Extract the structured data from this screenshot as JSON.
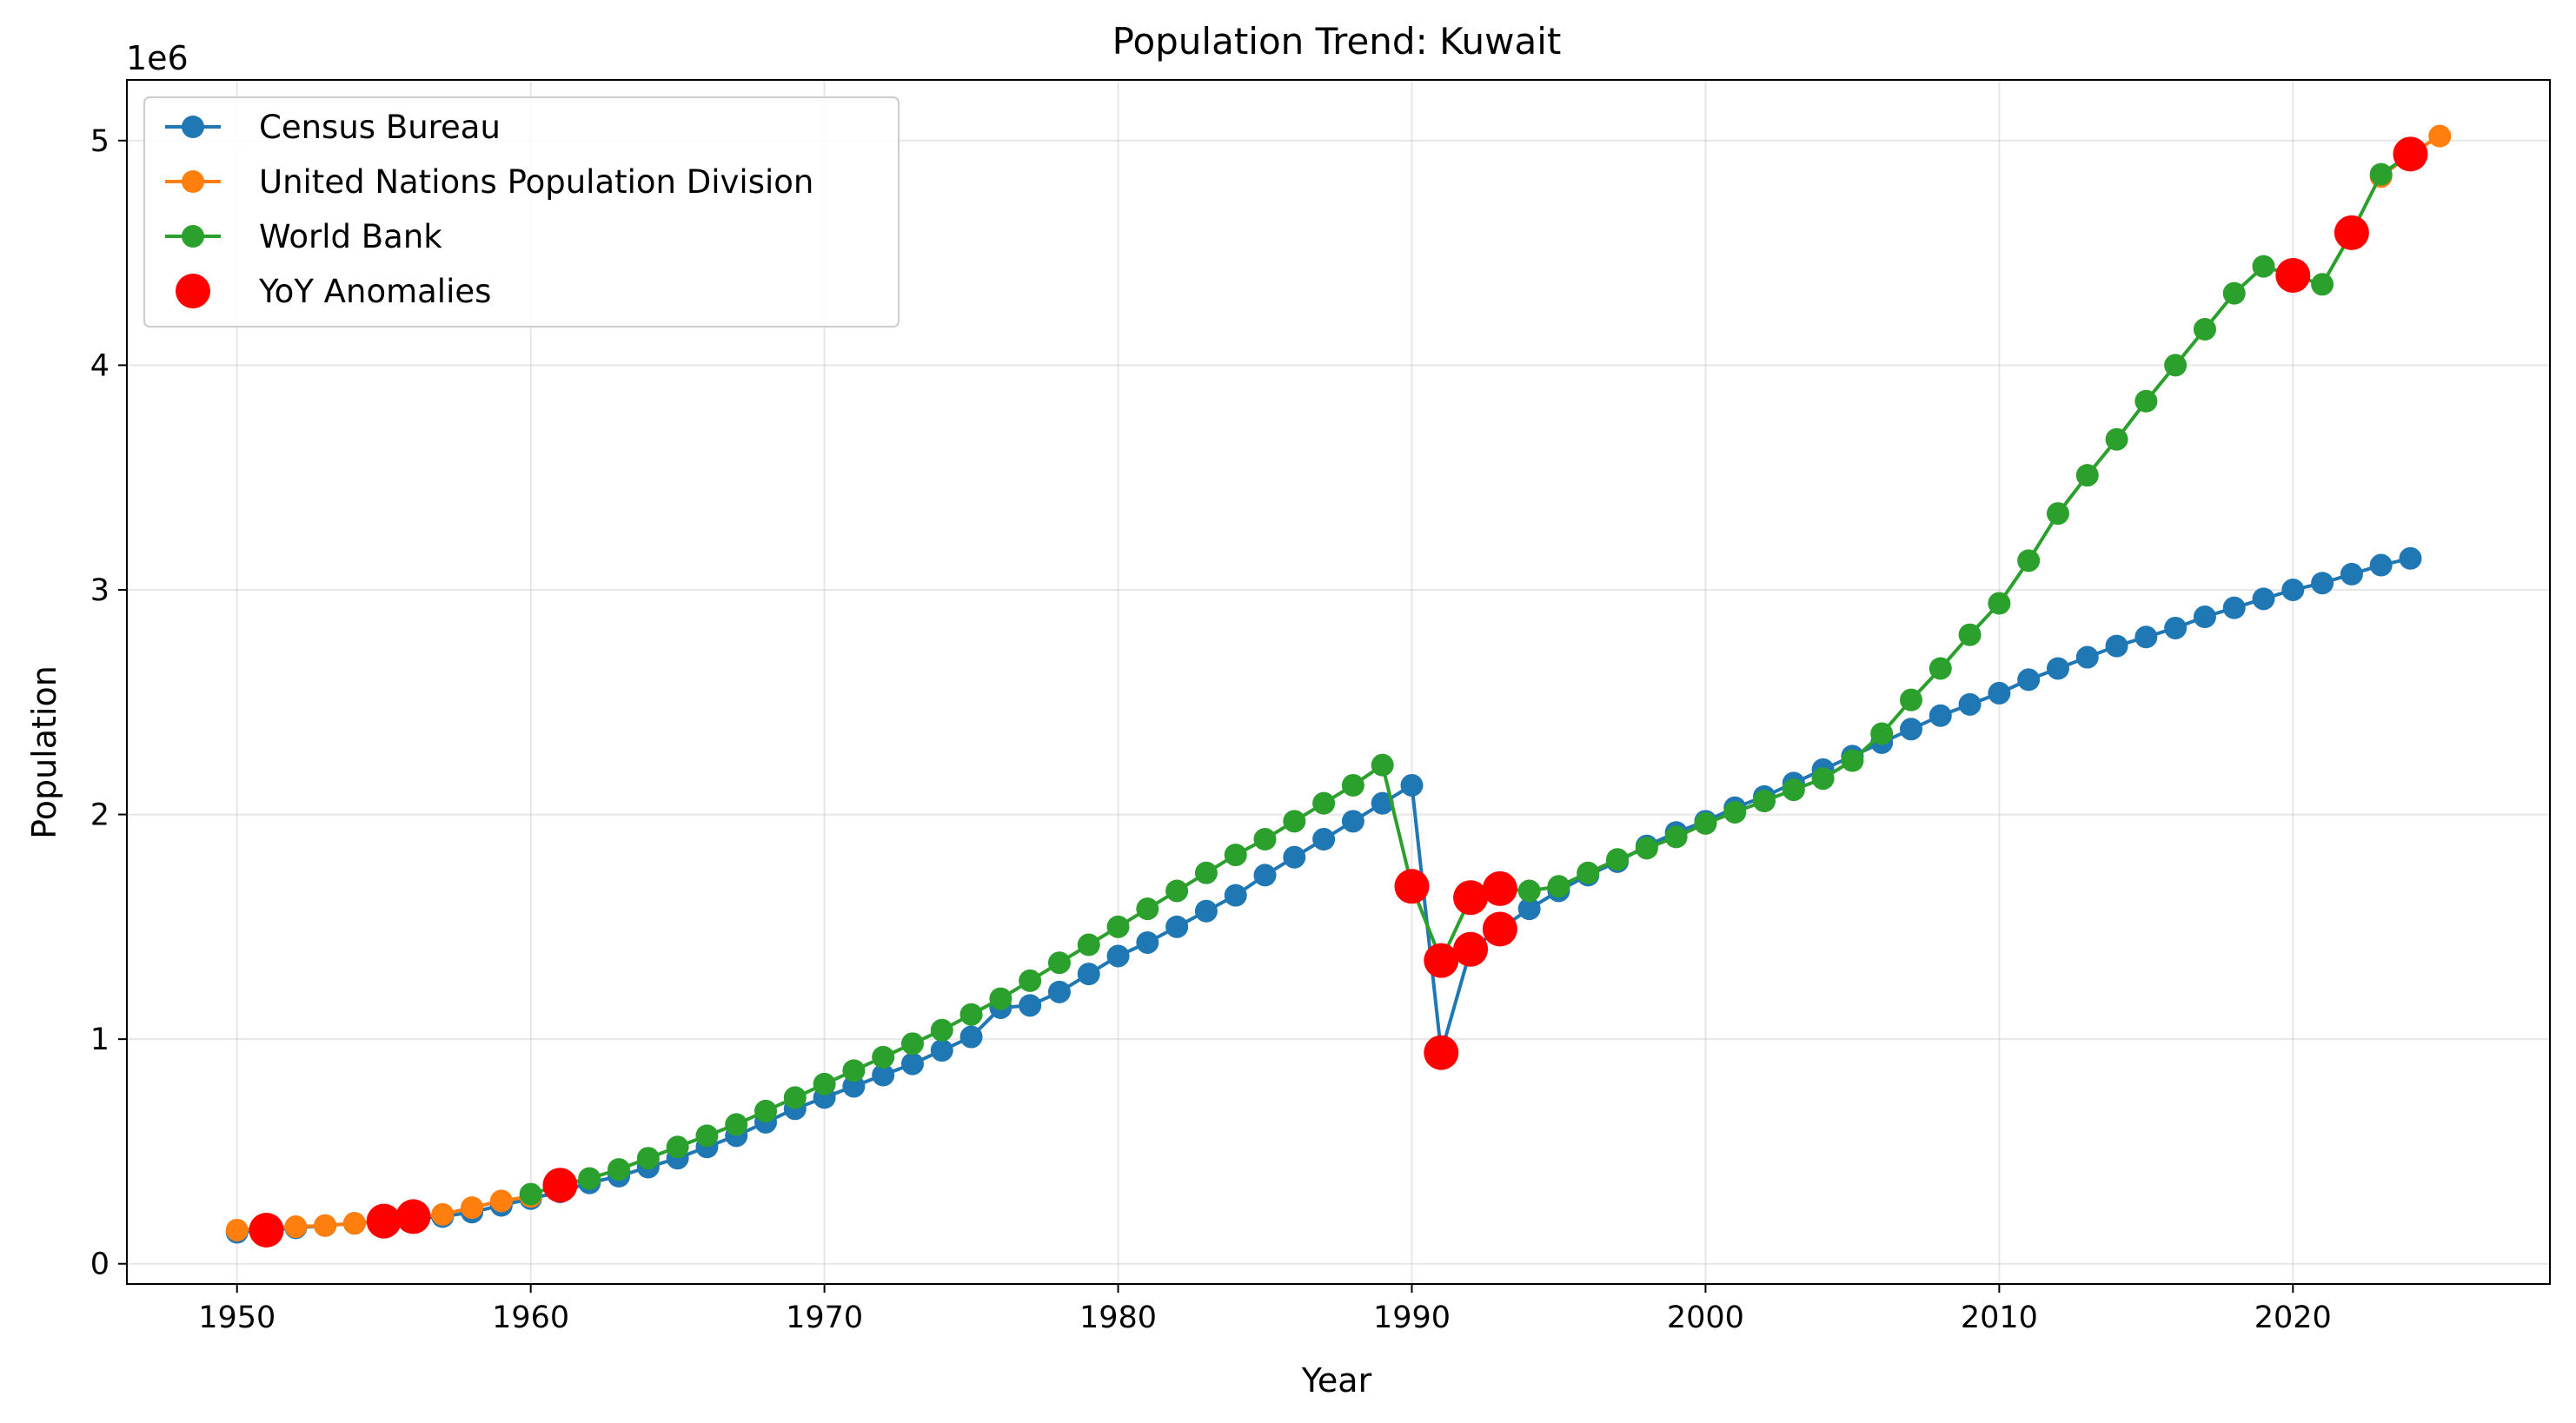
{
  "chart_data": {
    "type": "line",
    "title": "Population Trend: Kuwait",
    "xlabel": "Year",
    "ylabel": "Population",
    "y_offset_label": "1e6",
    "xlim": [
      1946.25,
      2028.75
    ],
    "ylim": [
      -0.09,
      5.27
    ],
    "x_ticks": [
      1950,
      1960,
      1970,
      1980,
      1990,
      2000,
      2010,
      2020
    ],
    "y_ticks": [
      0,
      1,
      2,
      3,
      4,
      5
    ],
    "grid": true,
    "legend_position": "top-left",
    "series": [
      {
        "name": "Census Bureau",
        "color": "#1f77b4",
        "marker": "circle",
        "x": [
          1950,
          1951,
          1952,
          1953,
          1954,
          1955,
          1956,
          1957,
          1958,
          1959,
          1960,
          1961,
          1962,
          1963,
          1964,
          1965,
          1966,
          1967,
          1968,
          1969,
          1970,
          1971,
          1972,
          1973,
          1974,
          1975,
          1976,
          1977,
          1978,
          1979,
          1980,
          1981,
          1982,
          1983,
          1984,
          1985,
          1986,
          1987,
          1988,
          1989,
          1990,
          1991,
          1992,
          1993,
          1994,
          1995,
          1996,
          1997,
          1998,
          1999,
          2000,
          2001,
          2002,
          2003,
          2004,
          2005,
          2006,
          2007,
          2008,
          2009,
          2010,
          2011,
          2012,
          2013,
          2014,
          2015,
          2016,
          2017,
          2018,
          2019,
          2020,
          2021,
          2022,
          2023,
          2024
        ],
        "y": [
          0.14,
          0.15,
          0.16,
          0.17,
          0.18,
          0.19,
          0.2,
          0.21,
          0.23,
          0.26,
          0.29,
          0.32,
          0.36,
          0.39,
          0.43,
          0.47,
          0.52,
          0.57,
          0.63,
          0.69,
          0.74,
          0.79,
          0.84,
          0.89,
          0.95,
          1.01,
          1.14,
          1.15,
          1.21,
          1.29,
          1.37,
          1.43,
          1.5,
          1.57,
          1.64,
          1.73,
          1.81,
          1.89,
          1.97,
          2.05,
          2.13,
          0.94,
          1.4,
          1.49,
          1.58,
          1.66,
          1.73,
          1.79,
          1.86,
          1.92,
          1.97,
          2.03,
          2.08,
          2.14,
          2.2,
          2.26,
          2.32,
          2.38,
          2.44,
          2.49,
          2.54,
          2.6,
          2.65,
          2.7,
          2.75,
          2.79,
          2.83,
          2.88,
          2.92,
          2.96,
          3.0,
          3.03,
          3.07,
          3.11,
          3.14
        ]
      },
      {
        "name": "United Nations Population Division",
        "color": "#ff7f0e",
        "marker": "circle",
        "x": [
          1950,
          1951,
          1952,
          1953,
          1954,
          1955,
          1956,
          1957,
          1958,
          1959,
          1960,
          2023,
          2024,
          2025
        ],
        "y": [
          0.15,
          0.16,
          0.165,
          0.17,
          0.18,
          0.19,
          0.21,
          0.22,
          0.25,
          0.28,
          0.3,
          4.84,
          4.94,
          5.02
        ]
      },
      {
        "name": "World Bank",
        "color": "#2ca02c",
        "marker": "circle",
        "x": [
          1960,
          1961,
          1962,
          1963,
          1964,
          1965,
          1966,
          1967,
          1968,
          1969,
          1970,
          1971,
          1972,
          1973,
          1974,
          1975,
          1976,
          1977,
          1978,
          1979,
          1980,
          1981,
          1982,
          1983,
          1984,
          1985,
          1986,
          1987,
          1988,
          1989,
          1990,
          1991,
          1992,
          1993,
          1994,
          1995,
          1996,
          1997,
          1998,
          1999,
          2000,
          2001,
          2002,
          2003,
          2004,
          2005,
          2006,
          2007,
          2008,
          2009,
          2010,
          2011,
          2012,
          2013,
          2014,
          2015,
          2016,
          2017,
          2018,
          2019,
          2020,
          2021,
          2022,
          2023,
          2024
        ],
        "y": [
          0.31,
          0.35,
          0.38,
          0.42,
          0.47,
          0.52,
          0.57,
          0.62,
          0.68,
          0.74,
          0.8,
          0.86,
          0.92,
          0.98,
          1.04,
          1.11,
          1.18,
          1.26,
          1.34,
          1.42,
          1.5,
          1.58,
          1.66,
          1.74,
          1.82,
          1.89,
          1.97,
          2.05,
          2.13,
          2.22,
          1.68,
          1.35,
          1.63,
          1.67,
          1.66,
          1.68,
          1.74,
          1.8,
          1.85,
          1.9,
          1.96,
          2.01,
          2.06,
          2.11,
          2.16,
          2.24,
          2.36,
          2.51,
          2.65,
          2.8,
          2.94,
          3.13,
          3.34,
          3.51,
          3.67,
          3.84,
          4.0,
          4.16,
          4.32,
          4.44,
          4.4,
          4.36,
          4.59,
          4.85,
          4.94
        ]
      }
    ],
    "anomalies": {
      "name": "YoY Anomalies",
      "color": "#ff0000",
      "x": [
        1951,
        1955,
        1956,
        1961,
        1990,
        1991,
        1991,
        1992,
        1992,
        1993,
        1993,
        2020,
        2022,
        2024
      ],
      "y": [
        0.15,
        0.19,
        0.21,
        0.35,
        1.68,
        0.94,
        1.35,
        1.4,
        1.63,
        1.49,
        1.67,
        4.4,
        4.59,
        4.94
      ]
    }
  }
}
